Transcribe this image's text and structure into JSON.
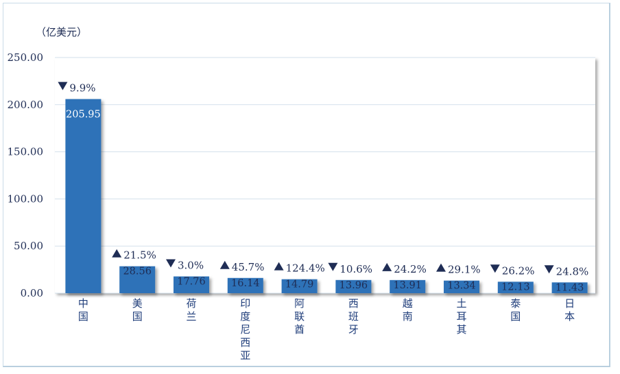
{
  "chart_data": {
    "type": "bar",
    "ylabel": "（亿美元）",
    "ylim": [
      0,
      250
    ],
    "y_ticks": [
      "0.00",
      "50.00",
      "100.00",
      "150.00",
      "200.00",
      "250.00"
    ],
    "grid": true,
    "categories": [
      "中国",
      "美国",
      "荷兰",
      "印度尼西亚",
      "阿联酋",
      "西班牙",
      "越南",
      "土耳其",
      "泰国",
      "日本"
    ],
    "values": [
      205.95,
      28.56,
      17.76,
      16.14,
      14.79,
      13.96,
      13.91,
      13.34,
      12.13,
      11.43
    ],
    "value_labels": [
      "205.95",
      "28.56",
      "17.76",
      "16.14",
      "14.79",
      "13.96",
      "13.91",
      "13.34",
      "12.13",
      "11.43"
    ],
    "changes": [
      {
        "dir": "down",
        "text": "9.9%"
      },
      {
        "dir": "up",
        "text": "21.5%"
      },
      {
        "dir": "down",
        "text": "3.0%"
      },
      {
        "dir": "up",
        "text": "45.7%"
      },
      {
        "dir": "up",
        "text": "124.4%"
      },
      {
        "dir": "down",
        "text": "10.6%"
      },
      {
        "dir": "up",
        "text": "24.2%"
      },
      {
        "dir": "up",
        "text": "29.1%"
      },
      {
        "dir": "down",
        "text": "26.2%"
      },
      {
        "dir": "down",
        "text": "24.8%"
      }
    ],
    "colors": {
      "bar": "#2d72b8",
      "grid": "#d3e0ec",
      "text": "#1f2d55",
      "category_text": "#1f3d7a",
      "value_on_light": "#1f2d55",
      "value_on_bar": "#ffffff"
    }
  }
}
